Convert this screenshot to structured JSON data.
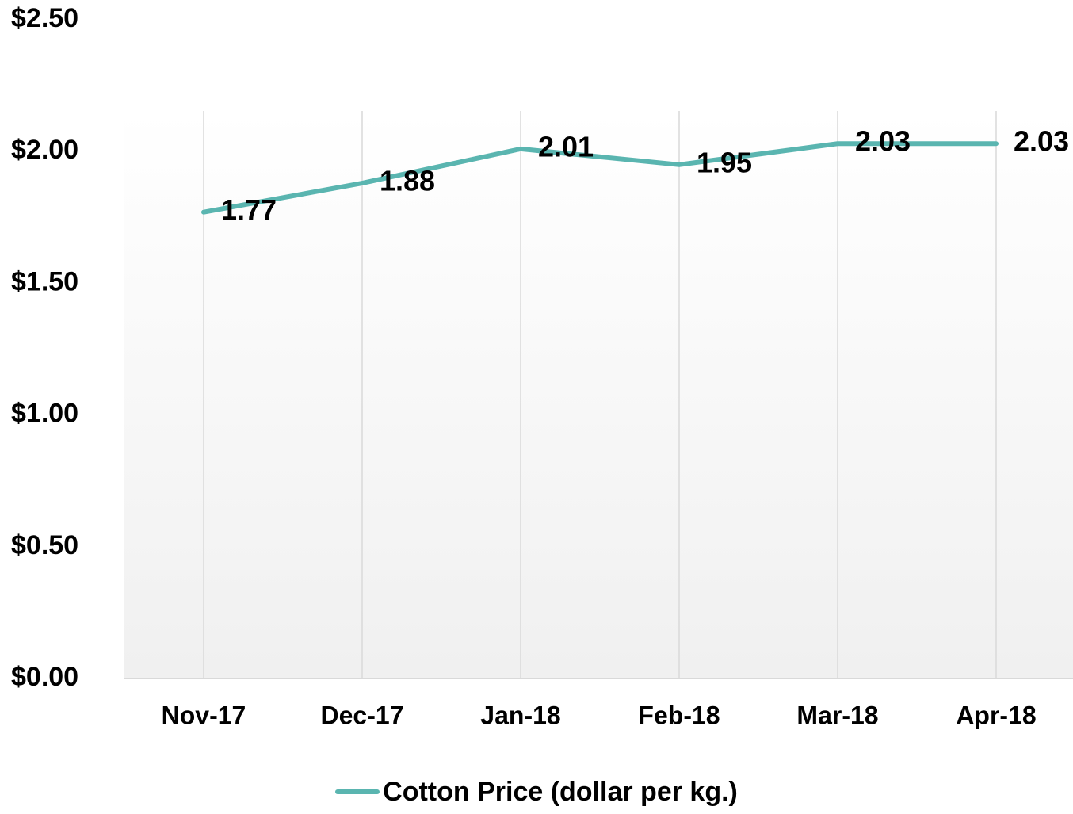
{
  "chart_data": {
    "type": "line",
    "categories": [
      "Nov-17",
      "Dec-17",
      "Jan-18",
      "Feb-18",
      "Mar-18",
      "Apr-18"
    ],
    "series": [
      {
        "name": "Cotton Price (dollar per kg.)",
        "values": [
          1.77,
          1.88,
          2.01,
          1.95,
          2.03,
          2.03
        ],
        "color": "#5ab5b0"
      }
    ],
    "data_labels": [
      "1.77",
      "1.88",
      "2.01",
      "1.95",
      "2.03",
      "2.03"
    ],
    "y_tick_labels": [
      "$0.00",
      "$0.50",
      "$1.00",
      "$1.50",
      "$2.00",
      "$2.50"
    ],
    "y_ticks": [
      0,
      0.5,
      1.0,
      1.5,
      2.0,
      2.5
    ],
    "ylim": [
      0,
      2.5
    ],
    "title": "",
    "xlabel": "",
    "ylabel": "",
    "grid": "vertical",
    "legend_position": "bottom"
  },
  "colors": {
    "series_line": "#5ab5b0",
    "gridline": "#d9d9d9",
    "axis": "#d9d9d9",
    "plot_bg_top": "#ffffff",
    "plot_bg_bottom": "#f0f0f0"
  }
}
